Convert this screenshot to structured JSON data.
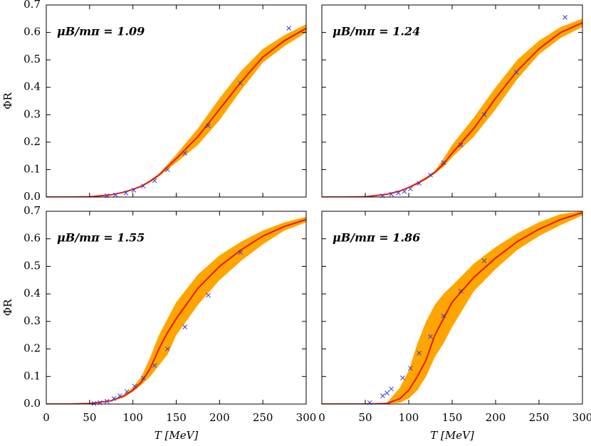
{
  "chart_data": [
    {
      "type": "line",
      "annotation": "μB/mπ = 1.09",
      "ylabel": "ΦR",
      "xtick_labels": false,
      "ytick_labels": true,
      "xlim": [
        0,
        300
      ],
      "ylim": [
        0,
        0.7
      ],
      "xticks": [
        0,
        50,
        100,
        150,
        200,
        250,
        300
      ],
      "yticks": [
        {
          "value": 0,
          "label": "0.0"
        },
        0.1,
        0.2,
        0.3,
        0.4,
        0.5,
        0.6,
        0.7
      ],
      "x": [
        0,
        25,
        50,
        75,
        90,
        100,
        110,
        120,
        130,
        140,
        150,
        175,
        200,
        225,
        250,
        275,
        300
      ],
      "band": {
        "color": "#ffa500",
        "lower": [
          0,
          0,
          0.001,
          0.007,
          0.016,
          0.026,
          0.037,
          0.054,
          0.075,
          0.1,
          0.125,
          0.19,
          0.28,
          0.39,
          0.49,
          0.55,
          0.6
        ],
        "upper": [
          0,
          0,
          0.001,
          0.009,
          0.02,
          0.03,
          0.043,
          0.062,
          0.085,
          0.12,
          0.155,
          0.25,
          0.36,
          0.46,
          0.54,
          0.59,
          0.63
        ]
      },
      "line": {
        "color": "#e41a1c",
        "values": [
          0,
          0,
          0.001,
          0.008,
          0.018,
          0.028,
          0.04,
          0.058,
          0.08,
          0.11,
          0.14,
          0.22,
          0.32,
          0.42,
          0.51,
          0.57,
          0.615
        ]
      },
      "points": {
        "color": "#3b3bd6",
        "x": [
          70,
          80,
          92,
          101,
          112,
          125,
          140,
          160,
          187,
          224,
          280
        ],
        "values": [
          0.005,
          0.008,
          0.015,
          0.025,
          0.04,
          0.06,
          0.1,
          0.16,
          0.26,
          0.415,
          0.615
        ]
      }
    },
    {
      "type": "line",
      "annotation": "μB/mπ = 1.24",
      "xtick_labels": false,
      "ytick_labels": false,
      "xlim": [
        0,
        300
      ],
      "ylim": [
        0,
        0.7
      ],
      "xticks": [
        0,
        50,
        100,
        150,
        200,
        250,
        300
      ],
      "yticks": [
        0,
        0.1,
        0.2,
        0.3,
        0.4,
        0.5,
        0.6,
        0.7
      ],
      "x": [
        0,
        25,
        50,
        75,
        90,
        100,
        110,
        120,
        130,
        140,
        150,
        175,
        200,
        225,
        250,
        275,
        300
      ],
      "band": {
        "color": "#ffa500",
        "lower": [
          0,
          0,
          0.001,
          0.009,
          0.02,
          0.032,
          0.046,
          0.063,
          0.085,
          0.11,
          0.145,
          0.22,
          0.32,
          0.43,
          0.52,
          0.58,
          0.62
        ],
        "upper": [
          0,
          0,
          0.001,
          0.011,
          0.024,
          0.038,
          0.054,
          0.073,
          0.095,
          0.14,
          0.19,
          0.29,
          0.4,
          0.5,
          0.57,
          0.62,
          0.65
        ]
      },
      "line": {
        "color": "#e41a1c",
        "values": [
          0,
          0,
          0.001,
          0.01,
          0.022,
          0.035,
          0.05,
          0.068,
          0.09,
          0.12,
          0.16,
          0.25,
          0.36,
          0.46,
          0.54,
          0.6,
          0.635
        ]
      },
      "points": {
        "color": "#3b3bd6",
        "x": [
          70,
          80,
          88,
          95,
          102,
          112,
          125,
          140,
          160,
          187,
          224,
          280
        ],
        "values": [
          0.005,
          0.01,
          0.015,
          0.02,
          0.03,
          0.05,
          0.08,
          0.125,
          0.19,
          0.3,
          0.455,
          0.655
        ]
      }
    },
    {
      "type": "line",
      "annotation": "μB/mπ = 1.55",
      "xlabel": "T [MeV]",
      "ylabel": "ΦR",
      "xtick_labels": true,
      "ytick_labels": true,
      "xlim": [
        0,
        300
      ],
      "ylim": [
        0,
        0.7
      ],
      "xticks": [
        0,
        50,
        100,
        150,
        200,
        250,
        300
      ],
      "yticks": [
        {
          "value": 0,
          "label": "0.0"
        },
        0.1,
        0.2,
        0.3,
        0.4,
        0.5,
        0.6,
        0.7
      ],
      "x": [
        0,
        25,
        50,
        75,
        90,
        100,
        110,
        120,
        130,
        140,
        150,
        175,
        200,
        225,
        250,
        275,
        300
      ],
      "band": {
        "color": "#ffa500",
        "lower": [
          0,
          0,
          0.002,
          0.01,
          0.025,
          0.045,
          0.07,
          0.1,
          0.14,
          0.18,
          0.25,
          0.36,
          0.45,
          0.52,
          0.58,
          0.63,
          0.66
        ],
        "upper": [
          0,
          0,
          0.002,
          0.014,
          0.035,
          0.06,
          0.1,
          0.17,
          0.25,
          0.31,
          0.37,
          0.47,
          0.54,
          0.59,
          0.63,
          0.66,
          0.68
        ]
      },
      "line": {
        "color": "#e41a1c",
        "values": [
          0,
          0,
          0.002,
          0.012,
          0.03,
          0.05,
          0.08,
          0.13,
          0.2,
          0.26,
          0.31,
          0.42,
          0.5,
          0.56,
          0.61,
          0.645,
          0.67
        ]
      },
      "points": {
        "color": "#3b3bd6",
        "x": [
          55,
          62,
          70,
          78,
          85,
          93,
          102,
          112,
          125,
          140,
          160,
          187,
          224
        ],
        "values": [
          0.002,
          0.005,
          0.01,
          0.02,
          0.03,
          0.045,
          0.065,
          0.095,
          0.14,
          0.2,
          0.28,
          0.395,
          0.55
        ]
      }
    },
    {
      "type": "line",
      "annotation": "μB/mπ = 1.86",
      "xlabel": "T [MeV]",
      "xtick_labels": true,
      "ytick_labels": false,
      "xlim": [
        0,
        300
      ],
      "ylim": [
        0,
        0.7
      ],
      "xticks": [
        0,
        50,
        100,
        150,
        200,
        250,
        300
      ],
      "yticks": [
        0,
        0.1,
        0.2,
        0.3,
        0.4,
        0.5,
        0.6,
        0.7
      ],
      "x": [
        0,
        25,
        50,
        75,
        90,
        100,
        110,
        120,
        130,
        140,
        150,
        175,
        200,
        225,
        250,
        275,
        300
      ],
      "band": {
        "color": "#ffa500",
        "lower": [
          0,
          0,
          0,
          0.001,
          0.005,
          0.02,
          0.05,
          0.1,
          0.17,
          0.22,
          0.28,
          0.41,
          0.49,
          0.56,
          0.61,
          0.65,
          0.685
        ],
        "upper": [
          0,
          0,
          0,
          0.005,
          0.06,
          0.12,
          0.22,
          0.3,
          0.36,
          0.4,
          0.43,
          0.51,
          0.57,
          0.62,
          0.66,
          0.69,
          0.7
        ]
      },
      "line": {
        "color": "#e41a1c",
        "values": [
          0,
          0,
          0,
          0.002,
          0.02,
          0.05,
          0.1,
          0.16,
          0.25,
          0.31,
          0.37,
          0.46,
          0.53,
          0.59,
          0.635,
          0.67,
          0.695
        ]
      },
      "points": {
        "color": "#3b3bd6",
        "x": [
          55,
          70,
          75,
          80,
          93,
          102,
          112,
          125,
          140,
          160,
          187
        ],
        "values": [
          0.005,
          0.03,
          0.04,
          0.055,
          0.095,
          0.13,
          0.185,
          0.245,
          0.32,
          0.41,
          0.52
        ]
      }
    }
  ]
}
